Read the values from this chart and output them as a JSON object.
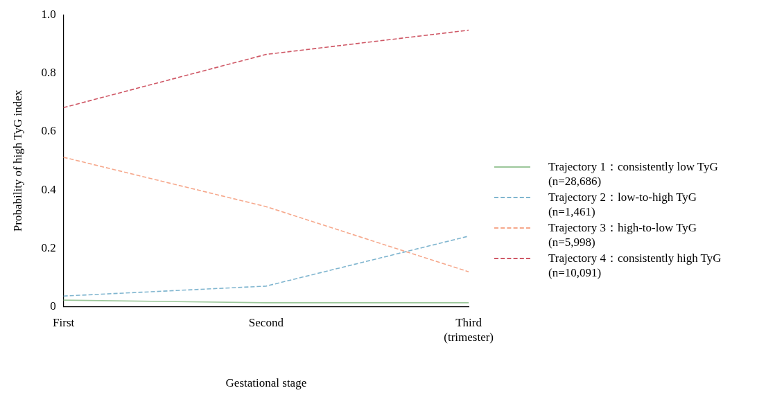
{
  "chart_data": {
    "type": "line",
    "xlabel": "Gestational stage",
    "ylabel": "Probability of high TyG index",
    "categories": [
      "First",
      "Second",
      "Third\n(trimester)"
    ],
    "ylim": [
      0,
      1
    ],
    "yticks": [
      0,
      {
        "value": 0.2,
        "label": "0.2"
      },
      {
        "value": 0.4,
        "label": "0.4"
      },
      {
        "value": 0.6,
        "label": "0.6"
      },
      {
        "value": 0.8,
        "label": "0.8"
      },
      {
        "value": 1,
        "label": "1.0"
      }
    ],
    "grid": false,
    "legend": "right",
    "marker": "none",
    "series": [
      {
        "name": "Trajectory 1：consistently low TyG\n(n=28,686)",
        "color": "#9cc79a",
        "line_style": "solid",
        "values": [
          0.023,
          0.014,
          0.014
        ]
      },
      {
        "name": "Trajectory 2：low-to-high TyG\n(n=1,461)",
        "color": "#7fb5cf",
        "line_style": "dashed",
        "values": [
          0.037,
          0.071,
          0.242
        ]
      },
      {
        "name": "Trajectory 3：high-to-low TyG\n(n=5,998)",
        "color": "#f6a88c",
        "line_style": "dashed",
        "values": [
          0.512,
          0.343,
          0.12
        ]
      },
      {
        "name": "Trajectory 4：consistently high TyG\n(n=10,091)",
        "color": "#cf5866",
        "line_style": "dashed",
        "values": [
          0.682,
          0.864,
          0.947
        ]
      }
    ]
  }
}
